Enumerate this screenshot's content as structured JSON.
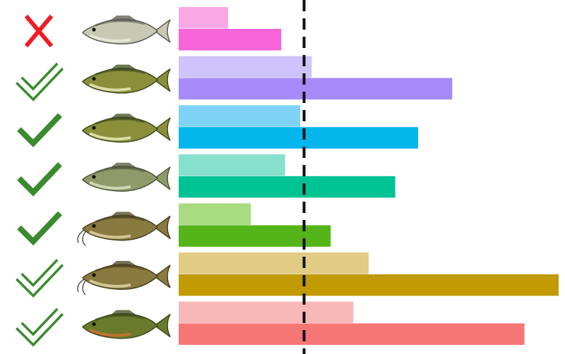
{
  "chart_data": {
    "type": "bar",
    "orientation": "horizontal",
    "title": "",
    "xlabel": "",
    "ylabel": "",
    "grid": false,
    "legend": "none",
    "xlim": [
      0,
      100
    ],
    "reference_line": {
      "value": 33,
      "style": "dashed",
      "color": "#111111"
    },
    "categories": [
      {
        "name": "striped-bass",
        "status": "cross",
        "values": [
          13,
          27
        ],
        "colors": [
          "#f9a8e6",
          "#f765d9"
        ]
      },
      {
        "name": "smallmouth-bass",
        "status": "check-outline",
        "values": [
          35,
          72
        ],
        "colors": [
          "#cfc3fb",
          "#a68bf8"
        ]
      },
      {
        "name": "largemouth-bass",
        "status": "check",
        "values": [
          32,
          63
        ],
        "colors": [
          "#7fd3f6",
          "#03b7ec"
        ]
      },
      {
        "name": "rock-bass",
        "status": "check",
        "values": [
          28,
          57
        ],
        "colors": [
          "#86e0cb",
          "#00c394"
        ]
      },
      {
        "name": "flathead-catfish",
        "status": "check",
        "values": [
          19,
          40
        ],
        "colors": [
          "#a9db81",
          "#55b419"
        ]
      },
      {
        "name": "channel-catfish",
        "status": "check-outline",
        "values": [
          50,
          100
        ],
        "colors": [
          "#e1cc84",
          "#c29a04"
        ]
      },
      {
        "name": "bluegill",
        "status": "check-outline",
        "values": [
          46,
          91
        ],
        "colors": [
          "#f9b8b8",
          "#f67676"
        ]
      }
    ],
    "status_colors": {
      "cross": "#ee1c25",
      "check": "#3a8a2e"
    }
  }
}
